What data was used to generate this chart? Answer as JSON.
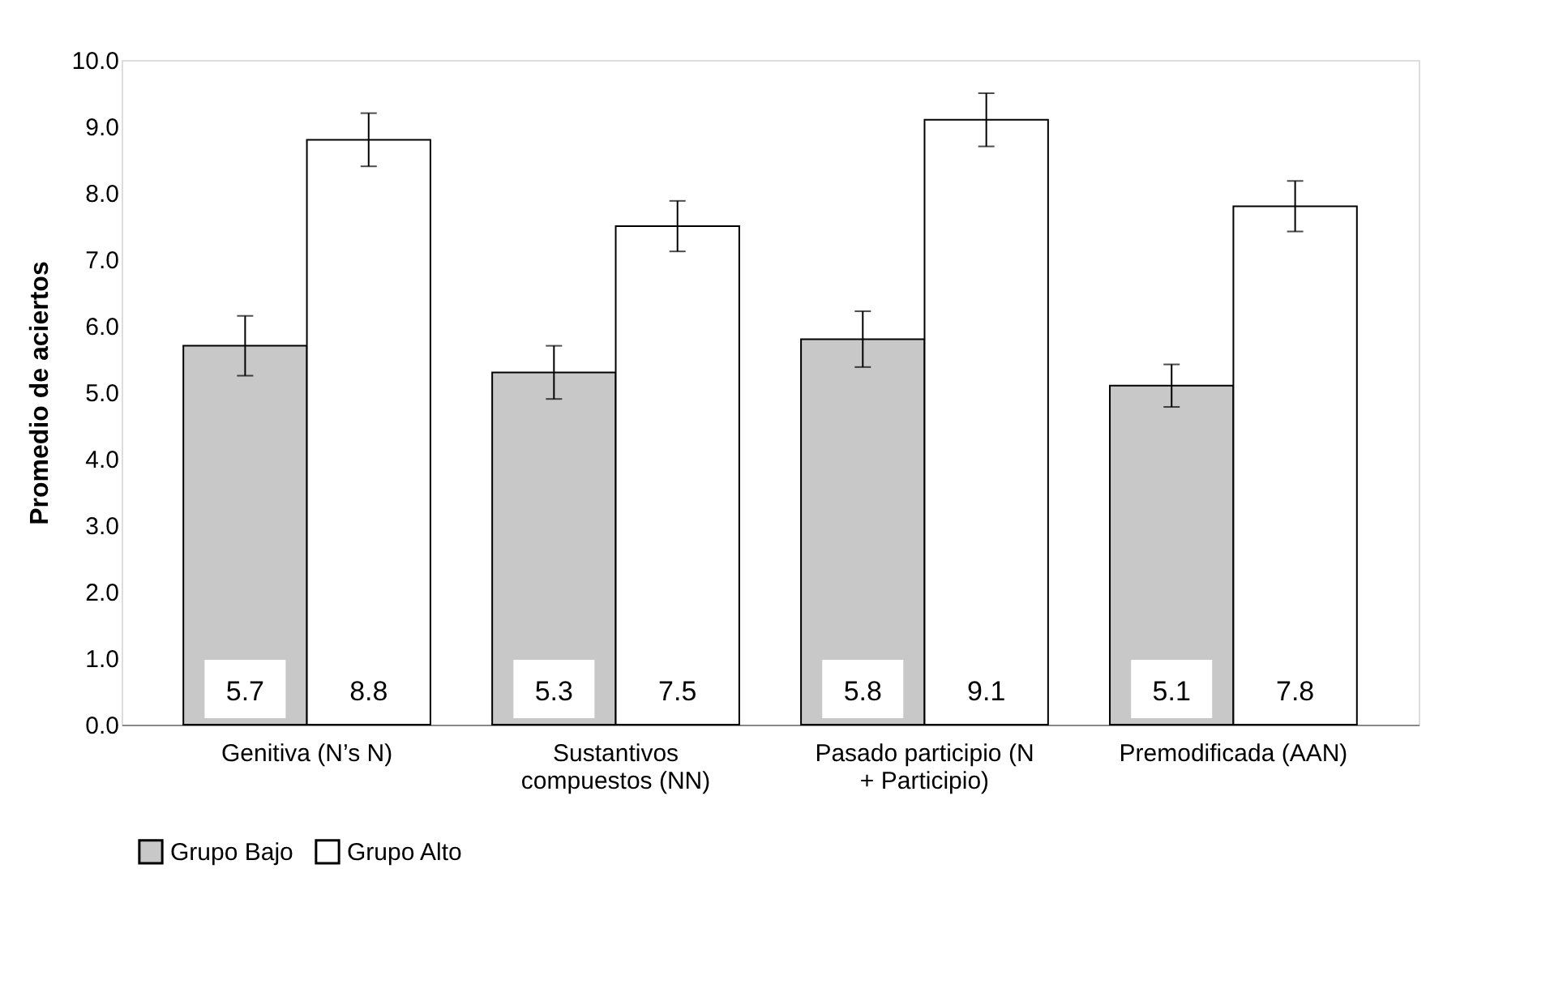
{
  "chart_data": {
    "type": "bar",
    "ylabel": "Promedio de aciertos",
    "categories": [
      "Genitiva (N’s N)",
      "Sustantivos compuestos (NN)",
      "Pasado participio (N + Participio)",
      "Premodificada (AAN)"
    ],
    "series": [
      {
        "name": "Grupo Bajo",
        "color": "#c8c8c8",
        "values": [
          5.7,
          5.3,
          5.8,
          5.1
        ],
        "errors": [
          0.45,
          0.4,
          0.42,
          0.32
        ]
      },
      {
        "name": "Grupo Alto",
        "color": "#ffffff",
        "values": [
          8.8,
          7.5,
          9.1,
          7.8
        ],
        "errors": [
          0.4,
          0.38,
          0.4,
          0.38
        ]
      }
    ],
    "ylim": [
      0,
      10
    ],
    "yticks": [
      {
        "value": 0,
        "label": "0.0"
      },
      {
        "value": 1,
        "label": "1.0"
      },
      {
        "value": 2,
        "label": "2.0"
      },
      {
        "value": 3,
        "label": "3.0"
      },
      {
        "value": 4,
        "label": "4.0"
      },
      {
        "value": 5,
        "label": "5.0"
      },
      {
        "value": 6,
        "label": "6.0"
      },
      {
        "value": 7,
        "label": "7.0"
      },
      {
        "value": 8,
        "label": "8.0"
      },
      {
        "value": 9,
        "label": "9.0"
      },
      {
        "value": 10,
        "label": "10.0"
      }
    ],
    "grid": false,
    "legend": "bottom",
    "data_labels": true
  }
}
